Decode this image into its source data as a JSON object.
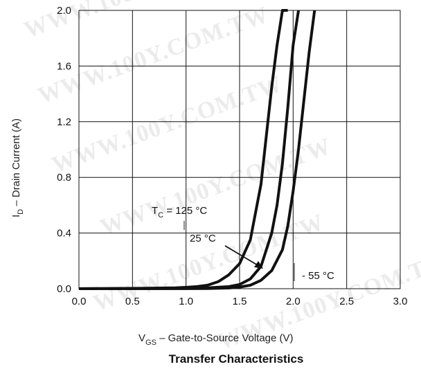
{
  "chart_data": {
    "type": "line",
    "caption": "Transfer Characteristics",
    "xlabel": {
      "main": "V",
      "sub": "GS",
      "rest": " – Gate-to-Source Voltage (V)"
    },
    "ylabel": {
      "main": "I",
      "sub": "D",
      "rest": " –  Drain Current (A)"
    },
    "xlim": [
      0.0,
      3.0
    ],
    "ylim": [
      0.0,
      2.0
    ],
    "xticks": [
      "0.0",
      "0.5",
      "1.0",
      "1.5",
      "2.0",
      "2.5",
      "3.0"
    ],
    "yticks": [
      "0.0",
      "0.4",
      "0.8",
      "1.2",
      "1.6",
      "2.0"
    ],
    "grid": true,
    "series": [
      {
        "name": "T_C = 125 °C",
        "x": [
          0.0,
          0.6,
          0.9,
          1.0,
          1.1,
          1.2,
          1.3,
          1.4,
          1.5,
          1.6,
          1.7,
          1.8,
          1.85,
          1.9,
          1.95
        ],
        "y": [
          0.0,
          0.003,
          0.006,
          0.01,
          0.015,
          0.025,
          0.05,
          0.1,
          0.18,
          0.35,
          0.75,
          1.45,
          1.75,
          2.0,
          2.0
        ]
      },
      {
        "name": "25 °C",
        "x": [
          0.0,
          1.0,
          1.2,
          1.4,
          1.5,
          1.6,
          1.7,
          1.8,
          1.85,
          1.9,
          1.95,
          2.0,
          2.05
        ],
        "y": [
          0.0,
          0.002,
          0.006,
          0.015,
          0.03,
          0.07,
          0.16,
          0.4,
          0.6,
          0.9,
          1.3,
          1.75,
          2.0
        ]
      },
      {
        "name": "- 55 °C",
        "x": [
          0.0,
          1.2,
          1.4,
          1.5,
          1.6,
          1.7,
          1.8,
          1.9,
          1.95,
          2.0,
          2.05,
          2.1,
          2.15,
          2.2
        ],
        "y": [
          0.0,
          0.001,
          0.005,
          0.012,
          0.025,
          0.06,
          0.13,
          0.28,
          0.45,
          0.7,
          1.0,
          1.35,
          1.7,
          2.0
        ]
      }
    ],
    "annotations": {
      "t125": {
        "main": "T",
        "sub": "C",
        "rest": " = 125 °C"
      },
      "t25": "25 °C",
      "tm55": "- 55 °C"
    }
  },
  "watermark": "WWW.100Y.COM.TW"
}
